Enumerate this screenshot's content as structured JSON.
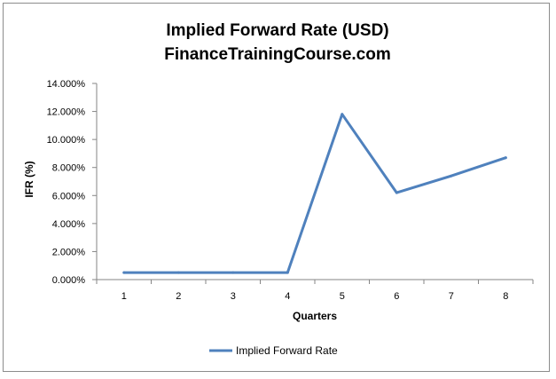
{
  "chart_data": {
    "type": "line",
    "title": "Implied Forward Rate (USD)",
    "subtitle": "FinanceTrainingCourse.com",
    "xlabel": "Quarters",
    "ylabel": "IFR (%)",
    "categories": [
      "1",
      "2",
      "3",
      "4",
      "5",
      "6",
      "7",
      "8"
    ],
    "y_ticks": [
      "0.000%",
      "2.000%",
      "4.000%",
      "6.000%",
      "8.000%",
      "10.000%",
      "12.000%",
      "14.000%"
    ],
    "ylim": [
      0,
      0.14
    ],
    "grid": false,
    "legend_position": "bottom",
    "series": [
      {
        "name": "Implied Forward  Rate",
        "color": "#4f81bd",
        "values": [
          0.005,
          0.005,
          0.005,
          0.005,
          0.118,
          0.062,
          0.074,
          0.087
        ]
      }
    ]
  }
}
